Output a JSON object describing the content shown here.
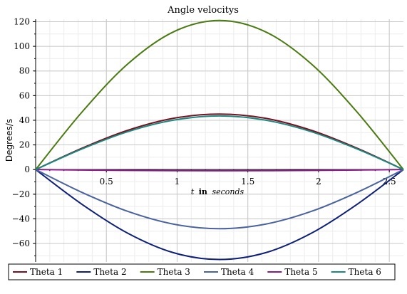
{
  "chart_data": {
    "type": "line",
    "title": "Angle velocitys",
    "ylabel": "Degrees/s",
    "xlabel": {
      "var": "t",
      "bold": "in",
      "unit": "seconds"
    },
    "xlim": [
      0,
      2.6
    ],
    "ylim": [
      -75,
      122
    ],
    "x_ticks": [
      0.5,
      1,
      1.5,
      2,
      2.5
    ],
    "x_tick_labels": [
      "0.5",
      "1",
      "1.5",
      "2",
      "2.5"
    ],
    "y_ticks": [
      -60,
      -40,
      -20,
      0,
      20,
      40,
      60,
      80,
      100,
      120
    ],
    "y_tick_labels": [
      "−60",
      "−40",
      "−20",
      "0",
      "20",
      "40",
      "60",
      "80",
      "100",
      "120"
    ],
    "grid": true,
    "legend_position": "bottom",
    "series": [
      {
        "name": "Theta 1",
        "color": "#7a1020",
        "x": [
          0,
          0.325,
          0.65,
          0.975,
          1.3,
          1.625,
          1.95,
          2.275,
          2.6
        ],
        "y": [
          0,
          17.2,
          31.8,
          41.6,
          45,
          41.6,
          31.8,
          17.2,
          0
        ]
      },
      {
        "name": "Theta 2",
        "color": "#0d1f7a",
        "x": [
          0,
          0.325,
          0.65,
          0.975,
          1.3,
          1.625,
          1.95,
          2.275,
          2.6
        ],
        "y": [
          0,
          -28,
          -51.6,
          -67.5,
          -73,
          -67.5,
          -51.6,
          -28,
          0
        ]
      },
      {
        "name": "Theta 3",
        "color": "#4a7a10",
        "x": [
          0,
          0.325,
          0.65,
          0.975,
          1.3,
          1.625,
          1.95,
          2.275,
          2.6
        ],
        "y": [
          0,
          46.3,
          85.6,
          111.8,
          121,
          111.8,
          85.6,
          46.3,
          0
        ]
      },
      {
        "name": "Theta 4",
        "color": "#4a63a0",
        "x": [
          0,
          0.325,
          0.65,
          0.975,
          1.3,
          1.625,
          1.95,
          2.275,
          2.6
        ],
        "y": [
          0,
          -18.4,
          -33.9,
          -44.3,
          -48,
          -44.3,
          -33.9,
          -18.4,
          0
        ]
      },
      {
        "name": "Theta 5",
        "color": "#8a1a8a",
        "x": [
          0,
          0.325,
          0.65,
          0.975,
          1.3,
          1.625,
          1.95,
          2.275,
          2.6
        ],
        "y": [
          0,
          -0.4,
          -0.7,
          -0.9,
          -1,
          -0.9,
          -0.7,
          -0.4,
          0
        ]
      },
      {
        "name": "Theta 6",
        "color": "#1a8a80",
        "x": [
          0,
          0.325,
          0.65,
          0.975,
          1.3,
          1.625,
          1.95,
          2.275,
          2.6
        ],
        "y": [
          0,
          16.6,
          30.7,
          40.1,
          43.5,
          40.1,
          30.7,
          16.6,
          0
        ]
      }
    ]
  }
}
